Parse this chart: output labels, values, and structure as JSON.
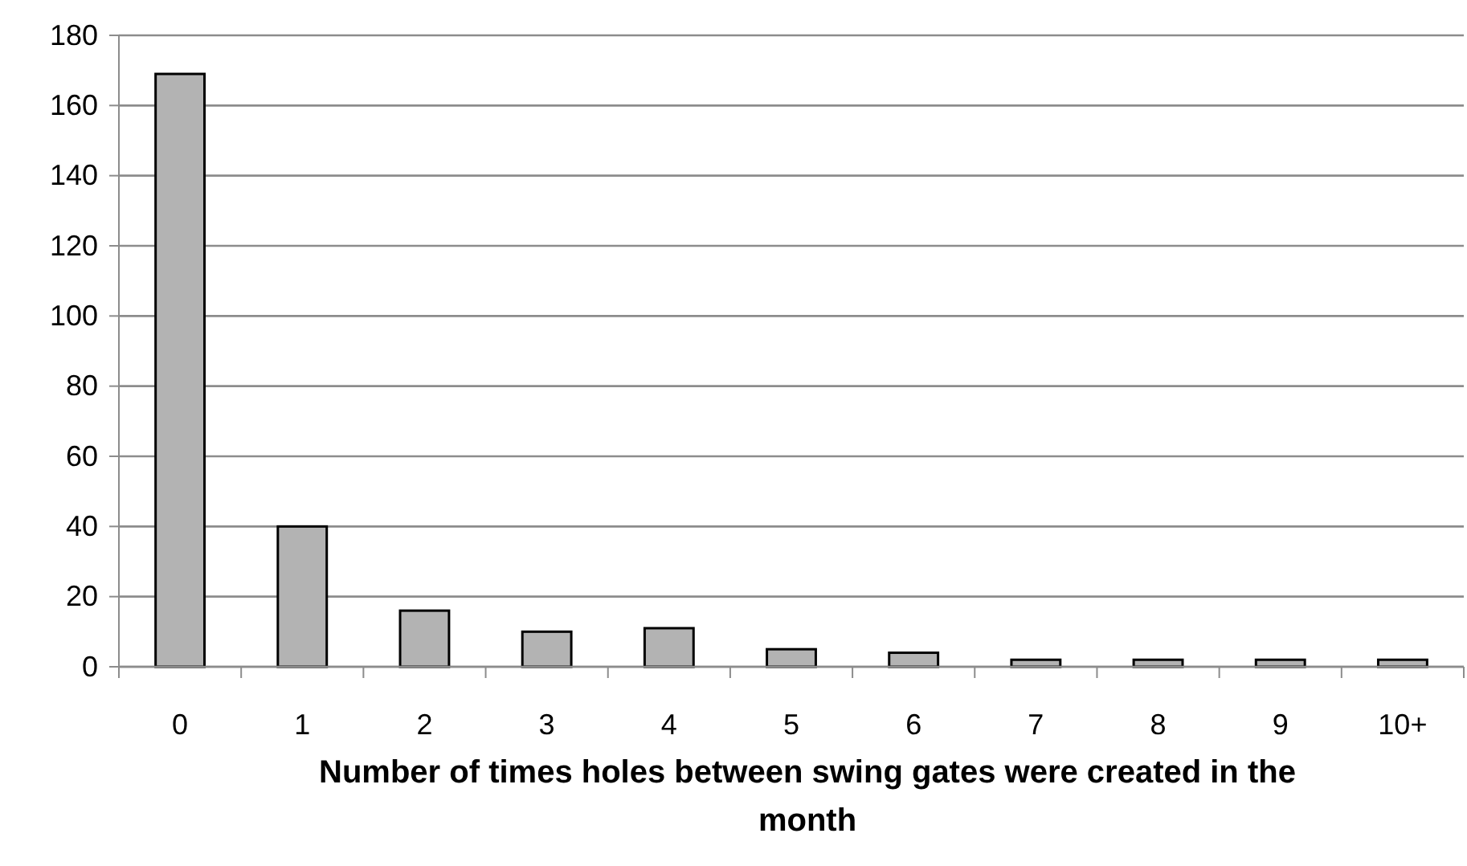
{
  "chart_data": {
    "type": "bar",
    "xlabel": "Number of times holes between swing gates were created in the month",
    "categories": [
      "0",
      "1",
      "2",
      "3",
      "4",
      "5",
      "6",
      "7",
      "8",
      "9",
      "10+"
    ],
    "values": [
      169,
      40,
      16,
      10,
      11,
      5,
      4,
      2,
      2,
      2,
      2
    ],
    "color": "#b3b3b3",
    "ylim": [
      0,
      180
    ],
    "yticks": [
      0,
      20,
      40,
      60,
      80,
      100,
      120,
      140,
      160,
      180
    ],
    "grid": "y"
  }
}
